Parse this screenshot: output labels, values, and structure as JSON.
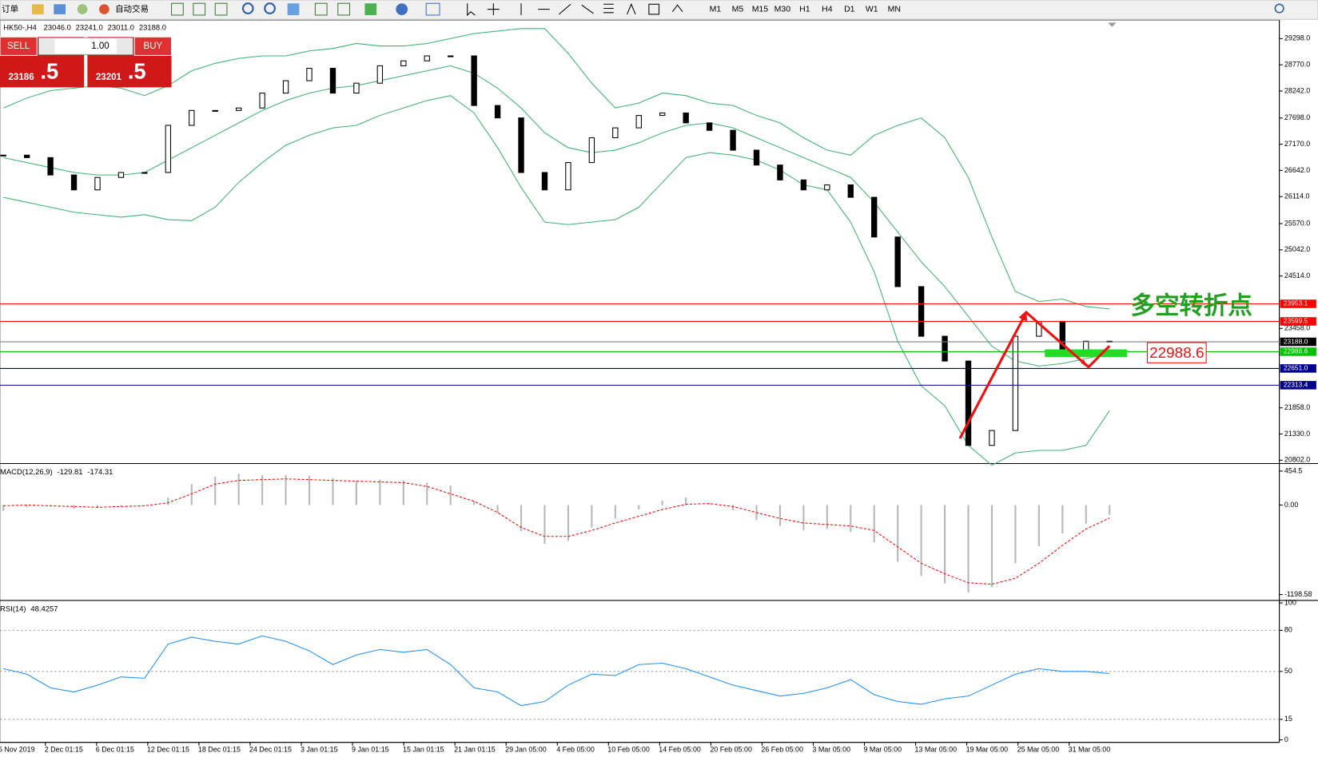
{
  "toolbar": {
    "order_label": "订单",
    "auto_trade": "自动交易",
    "timeframes": [
      "M1",
      "M5",
      "M15",
      "M30",
      "H1",
      "H4",
      "D1",
      "W1",
      "MN"
    ]
  },
  "trade_panel": {
    "sell": "SELL",
    "lots": "1.00",
    "buy": "BUY",
    "bid_main": "23186",
    "bid_pips": ".5",
    "ask_main": "23201",
    "ask_pips": ".5"
  },
  "time_axis": [
    "5 Nov 2019",
    "2 Dec 01:15",
    "6 Dec 01:15",
    "12 Dec 01:15",
    "18 Dec 01:15",
    "24 Dec 01:15",
    "3 Jan 01:15",
    "9 Jan 01:15",
    "15 Jan 01:15",
    "21 Jan 01:15",
    "29 Jan 05:00",
    "4 Feb 05:00",
    "10 Feb 05:00",
    "14 Feb 05:00",
    "20 Feb 05:00",
    "26 Feb 05:00",
    "3 Mar 05:00",
    "9 Mar 05:00",
    "13 Mar 05:00",
    "19 Mar 05:00",
    "25 Mar 05:00",
    "31 Mar 05:00"
  ],
  "chart_data": [
    {
      "type": "candlestick",
      "title": "HK50-,H4",
      "ohlc": [
        "23046.0",
        "23241.0",
        "23011.0",
        "23188.0"
      ],
      "close": [
        26950,
        26900,
        26550,
        26250,
        26500,
        26600,
        26600,
        27550,
        27850,
        27850,
        27900,
        28200,
        28450,
        28700,
        28200,
        28400,
        28750,
        28850,
        28950,
        28950,
        27950,
        27700,
        26600,
        26250,
        26800,
        27300,
        27500,
        27750,
        27800,
        27600,
        27450,
        27050,
        26750,
        26450,
        26250,
        26350,
        26100,
        25300,
        24300,
        23300,
        22800,
        21100,
        21400,
        23300,
        23600,
        23000,
        23200,
        23188
      ],
      "bb_upper": [
        27900,
        28100,
        28250,
        28300,
        28350,
        28300,
        28150,
        28350,
        28650,
        28800,
        28900,
        28950,
        28950,
        29050,
        29100,
        29200,
        29150,
        29150,
        29200,
        29300,
        29400,
        29450,
        29500,
        29500,
        29000,
        28400,
        27900,
        28000,
        28200,
        28150,
        28000,
        27950,
        27750,
        27600,
        27300,
        27050,
        26950,
        27350,
        27550,
        27700,
        27300,
        26500,
        25300,
        24200,
        24000,
        24050,
        23900,
        23850
      ],
      "bb_middle": [
        26900,
        26800,
        26700,
        26600,
        26550,
        26550,
        26600,
        26850,
        27100,
        27350,
        27600,
        27850,
        28050,
        28200,
        28300,
        28350,
        28450,
        28550,
        28650,
        28750,
        28600,
        28300,
        27900,
        27400,
        27100,
        27000,
        27050,
        27200,
        27400,
        27550,
        27600,
        27500,
        27300,
        27100,
        26900,
        26700,
        26500,
        26000,
        25400,
        24800,
        24300,
        23700,
        23100,
        22800,
        22700,
        22750,
        22850,
        22950
      ],
      "bb_lower": [
        26100,
        26000,
        25900,
        25800,
        25750,
        25700,
        25750,
        25650,
        25630,
        25900,
        26400,
        26800,
        27150,
        27350,
        27500,
        27550,
        27750,
        27900,
        28050,
        28150,
        27800,
        27100,
        26300,
        25600,
        25550,
        25600,
        25650,
        25900,
        26400,
        26900,
        27000,
        26950,
        26850,
        26650,
        26350,
        26250,
        25600,
        24600,
        23200,
        22300,
        21900,
        21100,
        20700,
        20950,
        21000,
        21000,
        21100,
        21800
      ],
      "ylim": [
        20751,
        29636
      ],
      "yticks": [
        {
          "value": 29298,
          "label": "29298.0"
        },
        {
          "value": 28770,
          "label": "28770.0"
        },
        {
          "value": 28242,
          "label": "28242.0"
        },
        {
          "value": 27698,
          "label": "27698.0"
        },
        {
          "value": 27170,
          "label": "27170.0"
        },
        {
          "value": 26642,
          "label": "26642.0"
        },
        {
          "value": 26114,
          "label": "26114.0"
        },
        {
          "value": 25570,
          "label": "25570.0"
        },
        {
          "value": 25042,
          "label": "25042.0"
        },
        {
          "value": 24514,
          "label": "24514.0"
        },
        {
          "value": 23458,
          "label": "23458.0"
        },
        {
          "value": 21858,
          "label": "21858.0"
        },
        {
          "value": 21330,
          "label": "21330.0"
        },
        {
          "value": 20802,
          "label": "20802.0"
        }
      ],
      "levels": [
        23953.1,
        23599.5,
        {
          "value": 23188,
          "label": "23188.0"
        },
        22988.6,
        {
          "value": 22651,
          "label": "22651.0"
        },
        22313.4
      ],
      "level_colors": [
        "#ff0000",
        "#ff0000",
        "#808080",
        "#00c000",
        "#00008b",
        "#00008b"
      ],
      "up_color": "#ffffff",
      "down_color": "#000000",
      "band_color": "#3cb371",
      "annotation": "多空转折点"
    },
    {
      "type": "macd",
      "title": "MACD(12,26,9)",
      "values": [
        -80,
        -30,
        -20,
        -50,
        -40,
        -20,
        -10,
        100,
        280,
        380,
        420,
        400,
        400,
        390,
        360,
        320,
        340,
        330,
        300,
        260,
        50,
        -100,
        -350,
        -520,
        -480,
        -300,
        -180,
        -60,
        60,
        100,
        30,
        -70,
        -200,
        -280,
        -340,
        -320,
        -360,
        -500,
        -760,
        -950,
        -1050,
        -1170,
        -1100,
        -780,
        -550,
        -380,
        -250,
        -129.81
      ],
      "signal": [
        -10,
        0,
        -10,
        -20,
        -30,
        -20,
        -10,
        30,
        150,
        280,
        330,
        340,
        350,
        340,
        330,
        320,
        310,
        300,
        250,
        150,
        50,
        -100,
        -300,
        -420,
        -420,
        -340,
        -240,
        -150,
        -60,
        10,
        20,
        -20,
        -100,
        -180,
        -240,
        -260,
        -280,
        -340,
        -560,
        -780,
        -920,
        -1040,
        -1060,
        -980,
        -780,
        -540,
        -320,
        -174.31
      ],
      "ylim": [
        -1266,
        544
      ],
      "yticks": [
        454.5,
        {
          "value": 0,
          "label": "0.00"
        },
        -1198.58
      ],
      "color": "#b8b8b8",
      "signal_color": "#ff0000"
    },
    {
      "type": "line",
      "title": "RSI(14)",
      "values": [
        52,
        48,
        38,
        35,
        40,
        46,
        45,
        70,
        75,
        72,
        70,
        76,
        72,
        65,
        55,
        62,
        66,
        64,
        66,
        55,
        38,
        35,
        25,
        28,
        40,
        48,
        47,
        55,
        56,
        52,
        46,
        40,
        36,
        32,
        34,
        38,
        44,
        33,
        28,
        26,
        30,
        32,
        40,
        48,
        52,
        50,
        50,
        48.4257
      ],
      "ylim": [
        0,
        100
      ],
      "yticks": [
        100,
        80,
        50,
        15,
        0
      ],
      "levels": [
        80,
        50,
        15
      ],
      "color": "#1e90ff"
    }
  ]
}
